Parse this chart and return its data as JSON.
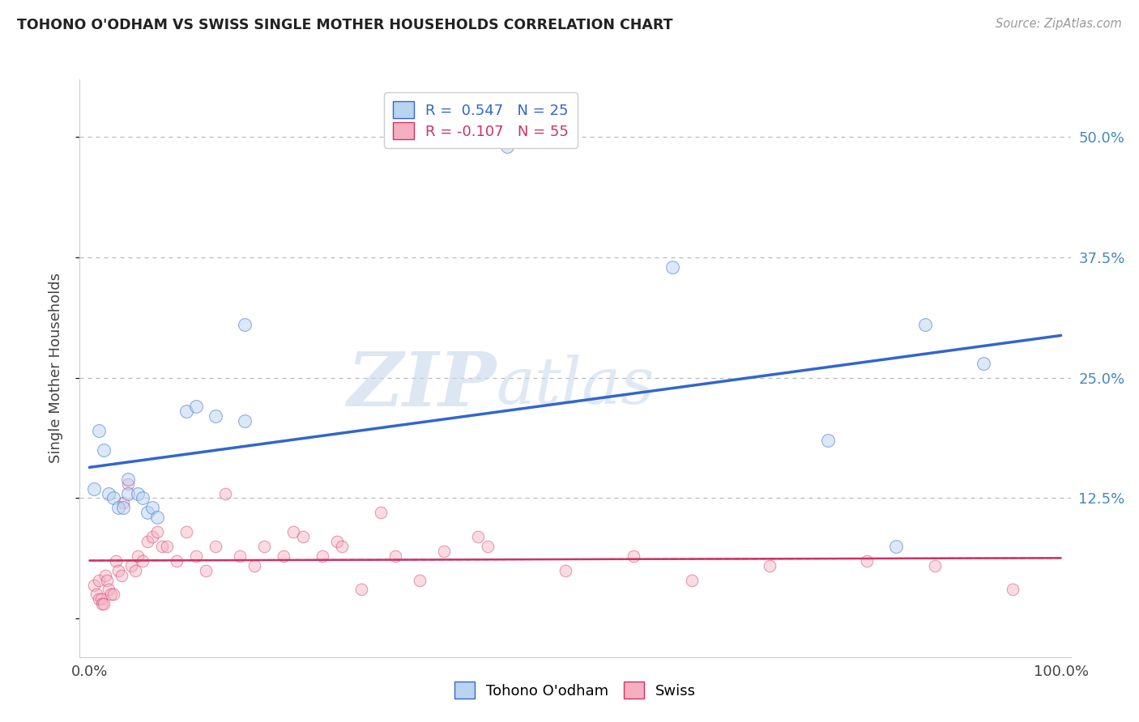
{
  "title": "TOHONO O'ODHAM VS SWISS SINGLE MOTHER HOUSEHOLDS CORRELATION CHART",
  "source": "Source: ZipAtlas.com",
  "ylabel": "Single Mother Households",
  "ytick_labels": [
    "",
    "12.5%",
    "25.0%",
    "37.5%",
    "50.0%"
  ],
  "ytick_values": [
    0.0,
    0.125,
    0.25,
    0.375,
    0.5
  ],
  "xlim": [
    -0.01,
    1.01
  ],
  "ylim": [
    -0.04,
    0.56
  ],
  "legend_blue_label": "R =  0.547   N = 25",
  "legend_pink_label": "R = -0.107   N = 55",
  "legend_blue_fill": "#b8d4f0",
  "legend_pink_fill": "#f5b0c0",
  "line_blue_color": "#3366cc",
  "line_pink_color": "#cc3366",
  "watermark_zip": "ZIP",
  "watermark_atlas": "atlas",
  "tohono_x": [
    0.005,
    0.01,
    0.015,
    0.02,
    0.025,
    0.03,
    0.035,
    0.04,
    0.04,
    0.05,
    0.055,
    0.06,
    0.065,
    0.07,
    0.1,
    0.11,
    0.13,
    0.16,
    0.16,
    0.43,
    0.6,
    0.76,
    0.83,
    0.86,
    0.92
  ],
  "tohono_y": [
    0.135,
    0.195,
    0.175,
    0.13,
    0.125,
    0.115,
    0.115,
    0.13,
    0.145,
    0.13,
    0.125,
    0.11,
    0.115,
    0.105,
    0.215,
    0.22,
    0.21,
    0.305,
    0.205,
    0.49,
    0.365,
    0.185,
    0.075,
    0.305,
    0.265
  ],
  "swiss_x": [
    0.005,
    0.007,
    0.01,
    0.01,
    0.012,
    0.013,
    0.015,
    0.016,
    0.018,
    0.02,
    0.022,
    0.025,
    0.027,
    0.03,
    0.033,
    0.035,
    0.04,
    0.043,
    0.047,
    0.05,
    0.055,
    0.06,
    0.065,
    0.07,
    0.075,
    0.08,
    0.09,
    0.1,
    0.11,
    0.12,
    0.13,
    0.14,
    0.155,
    0.17,
    0.18,
    0.2,
    0.21,
    0.22,
    0.24,
    0.255,
    0.26,
    0.28,
    0.3,
    0.315,
    0.34,
    0.365,
    0.4,
    0.41,
    0.49,
    0.56,
    0.62,
    0.7,
    0.8,
    0.87,
    0.95
  ],
  "swiss_y": [
    0.035,
    0.025,
    0.04,
    0.02,
    0.02,
    0.015,
    0.015,
    0.045,
    0.04,
    0.03,
    0.025,
    0.025,
    0.06,
    0.05,
    0.045,
    0.12,
    0.14,
    0.055,
    0.05,
    0.065,
    0.06,
    0.08,
    0.085,
    0.09,
    0.075,
    0.075,
    0.06,
    0.09,
    0.065,
    0.05,
    0.075,
    0.13,
    0.065,
    0.055,
    0.075,
    0.065,
    0.09,
    0.085,
    0.065,
    0.08,
    0.075,
    0.03,
    0.11,
    0.065,
    0.04,
    0.07,
    0.085,
    0.075,
    0.05,
    0.065,
    0.04,
    0.055,
    0.06,
    0.055,
    0.03
  ],
  "scatter_size_blue": 130,
  "scatter_size_pink": 110,
  "scatter_alpha_blue": 0.5,
  "scatter_alpha_pink": 0.45,
  "grid_color": "#bbbbbb",
  "background_color": "#ffffff"
}
